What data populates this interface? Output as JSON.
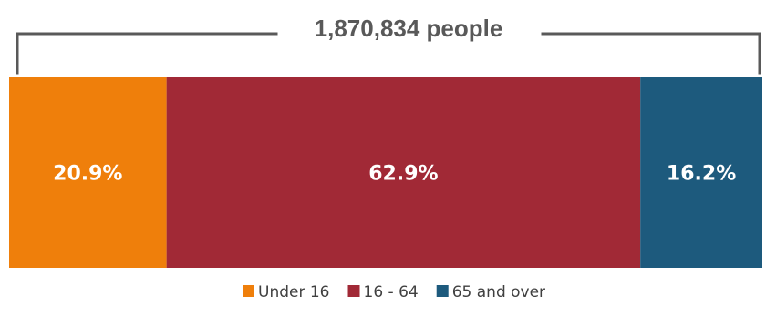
{
  "chart_data": {
    "type": "bar",
    "orientation": "horizontal-stacked-100",
    "total_label": "1,870,834 people",
    "categories": [
      "Under 16",
      "16 - 64",
      "65 and over"
    ],
    "values": [
      20.9,
      62.9,
      16.2
    ],
    "value_labels": [
      "20.9%",
      "62.9%",
      "16.2%"
    ],
    "colors": [
      "#ef7f0b",
      "#a12936",
      "#1d5a7d"
    ],
    "legend_position": "bottom-center",
    "grid": false
  }
}
